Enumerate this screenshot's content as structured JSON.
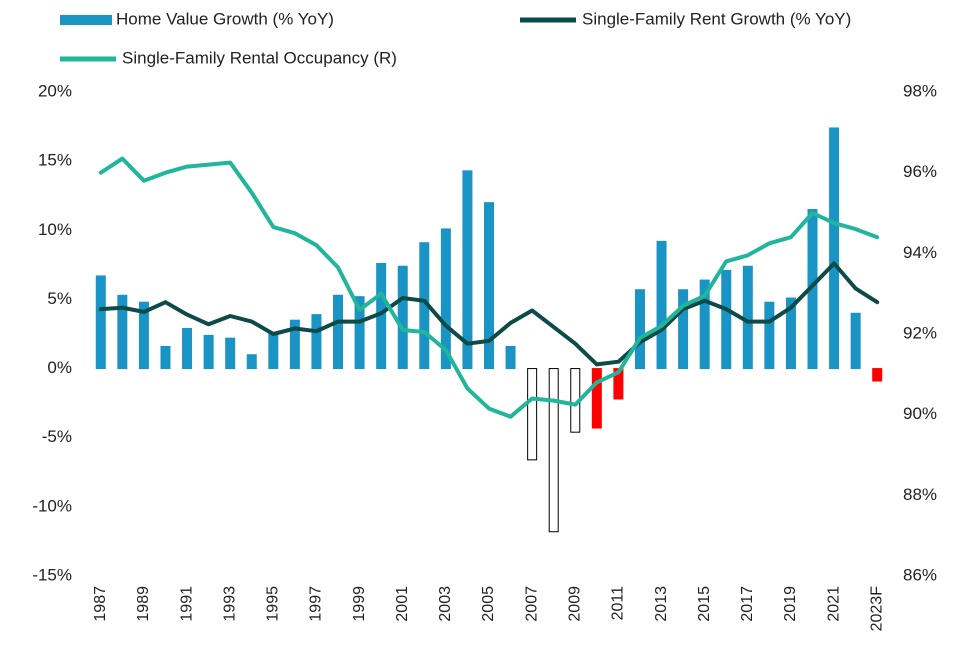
{
  "chart_data": {
    "type": "bar_line",
    "categories": [
      "1987",
      null,
      "1989",
      null,
      "1991",
      null,
      "1993",
      null,
      "1995",
      null,
      "1997",
      null,
      "1999",
      null,
      "2001",
      null,
      "2003",
      null,
      "2005",
      null,
      "2007",
      null,
      "2009",
      null,
      "2011",
      null,
      "2013",
      null,
      "2015",
      null,
      "2017",
      null,
      "2019",
      null,
      "2021",
      null,
      "2023F"
    ],
    "series": [
      {
        "name": "Home Value Growth (% YoY)",
        "type": "bar",
        "color": "#1a94c4",
        "colors": [
          "#1a94c4",
          "#1a94c4",
          "#1a94c4",
          "#1a94c4",
          "#1a94c4",
          "#1a94c4",
          "#1a94c4",
          "#1a94c4",
          "#1a94c4",
          "#1a94c4",
          "#1a94c4",
          "#1a94c4",
          "#1a94c4",
          "#1a94c4",
          "#1a94c4",
          "#1a94c4",
          "#1a94c4",
          "#1a94c4",
          "#1a94c4",
          "#1a94c4",
          "#ffffff",
          "#ffffff",
          "#ffffff",
          "#ff0000",
          "#ff0000",
          "#1a94c4",
          "#1a94c4",
          "#1a94c4",
          "#1a94c4",
          "#1a94c4",
          "#1a94c4",
          "#1a94c4",
          "#1a94c4",
          "#1a94c4",
          "#1a94c4",
          "#1a94c4",
          "#ff0000"
        ],
        "edgecolors": [
          "#1a94c4",
          "#1a94c4",
          "#1a94c4",
          "#1a94c4",
          "#1a94c4",
          "#1a94c4",
          "#1a94c4",
          "#1a94c4",
          "#1a94c4",
          "#1a94c4",
          "#1a94c4",
          "#1a94c4",
          "#1a94c4",
          "#1a94c4",
          "#1a94c4",
          "#1a94c4",
          "#1a94c4",
          "#1a94c4",
          "#1a94c4",
          "#1a94c4",
          "#000000",
          "#000000",
          "#000000",
          "#ff0000",
          "#ff0000",
          "#1a94c4",
          "#1a94c4",
          "#1a94c4",
          "#1a94c4",
          "#1a94c4",
          "#1a94c4",
          "#1a94c4",
          "#1a94c4",
          "#1a94c4",
          "#1a94c4",
          "#1a94c4",
          "#ff0000"
        ],
        "values": [
          6.7,
          5.3,
          4.8,
          1.6,
          2.9,
          2.4,
          2.2,
          1.0,
          2.5,
          3.5,
          3.9,
          5.3,
          5.2,
          7.6,
          7.4,
          9.1,
          10.1,
          14.3,
          12.0,
          1.6,
          -6.6,
          -11.8,
          -4.6,
          -4.3,
          -2.2,
          5.7,
          9.2,
          5.7,
          6.4,
          7.1,
          7.4,
          4.8,
          5.1,
          11.5,
          17.4,
          4.0,
          -0.9
        ]
      },
      {
        "name": "Single-Family Rent Growth (% YoY)",
        "type": "line",
        "color": "#0e4a47",
        "values": [
          4.3,
          4.4,
          4.1,
          4.8,
          3.9,
          3.2,
          3.8,
          3.4,
          2.5,
          2.9,
          2.7,
          3.4,
          3.4,
          4.0,
          5.1,
          4.9,
          3.1,
          1.8,
          2.0,
          3.3,
          4.2,
          3.0,
          1.8,
          0.3,
          0.5,
          1.9,
          2.8,
          4.3,
          4.9,
          4.3,
          3.4,
          3.4,
          4.4,
          6.0,
          7.6,
          5.8,
          4.8
        ]
      },
      {
        "name": "Single-Family Rental Occupancy (R)",
        "type": "line",
        "axis": "y2",
        "color": "#21b59b",
        "values": [
          96.0,
          96.35,
          95.8,
          96.0,
          96.15,
          96.2,
          96.25,
          95.5,
          94.65,
          94.5,
          94.2,
          93.65,
          92.6,
          93.0,
          92.1,
          92.05,
          91.6,
          90.65,
          90.15,
          89.95,
          90.4,
          90.35,
          90.25,
          90.8,
          91.05,
          91.9,
          92.2,
          92.7,
          92.95,
          93.8,
          93.95,
          94.25,
          94.4,
          95.0,
          94.75,
          94.6,
          94.4
        ]
      }
    ],
    "ylim": [
      -15,
      20
    ],
    "yticks": [
      {
        "value": 20,
        "label": "20%"
      },
      {
        "value": 15,
        "label": "15%"
      },
      {
        "value": 10,
        "label": "10%"
      },
      {
        "value": 5,
        "label": "5%"
      },
      {
        "value": 0,
        "label": "0%"
      },
      {
        "value": -5,
        "label": "-5%"
      },
      {
        "value": -10,
        "label": "-10%"
      },
      {
        "value": -15,
        "label": "-15%"
      }
    ],
    "y2lim": [
      86,
      98
    ],
    "y2ticks": [
      {
        "value": 98,
        "label": "98%"
      },
      {
        "value": 96,
        "label": "96%"
      },
      {
        "value": 94,
        "label": "94%"
      },
      {
        "value": 92,
        "label": "92%"
      },
      {
        "value": 90,
        "label": "90%"
      },
      {
        "value": 88,
        "label": "88%"
      },
      {
        "value": 86,
        "label": "86%"
      }
    ]
  }
}
